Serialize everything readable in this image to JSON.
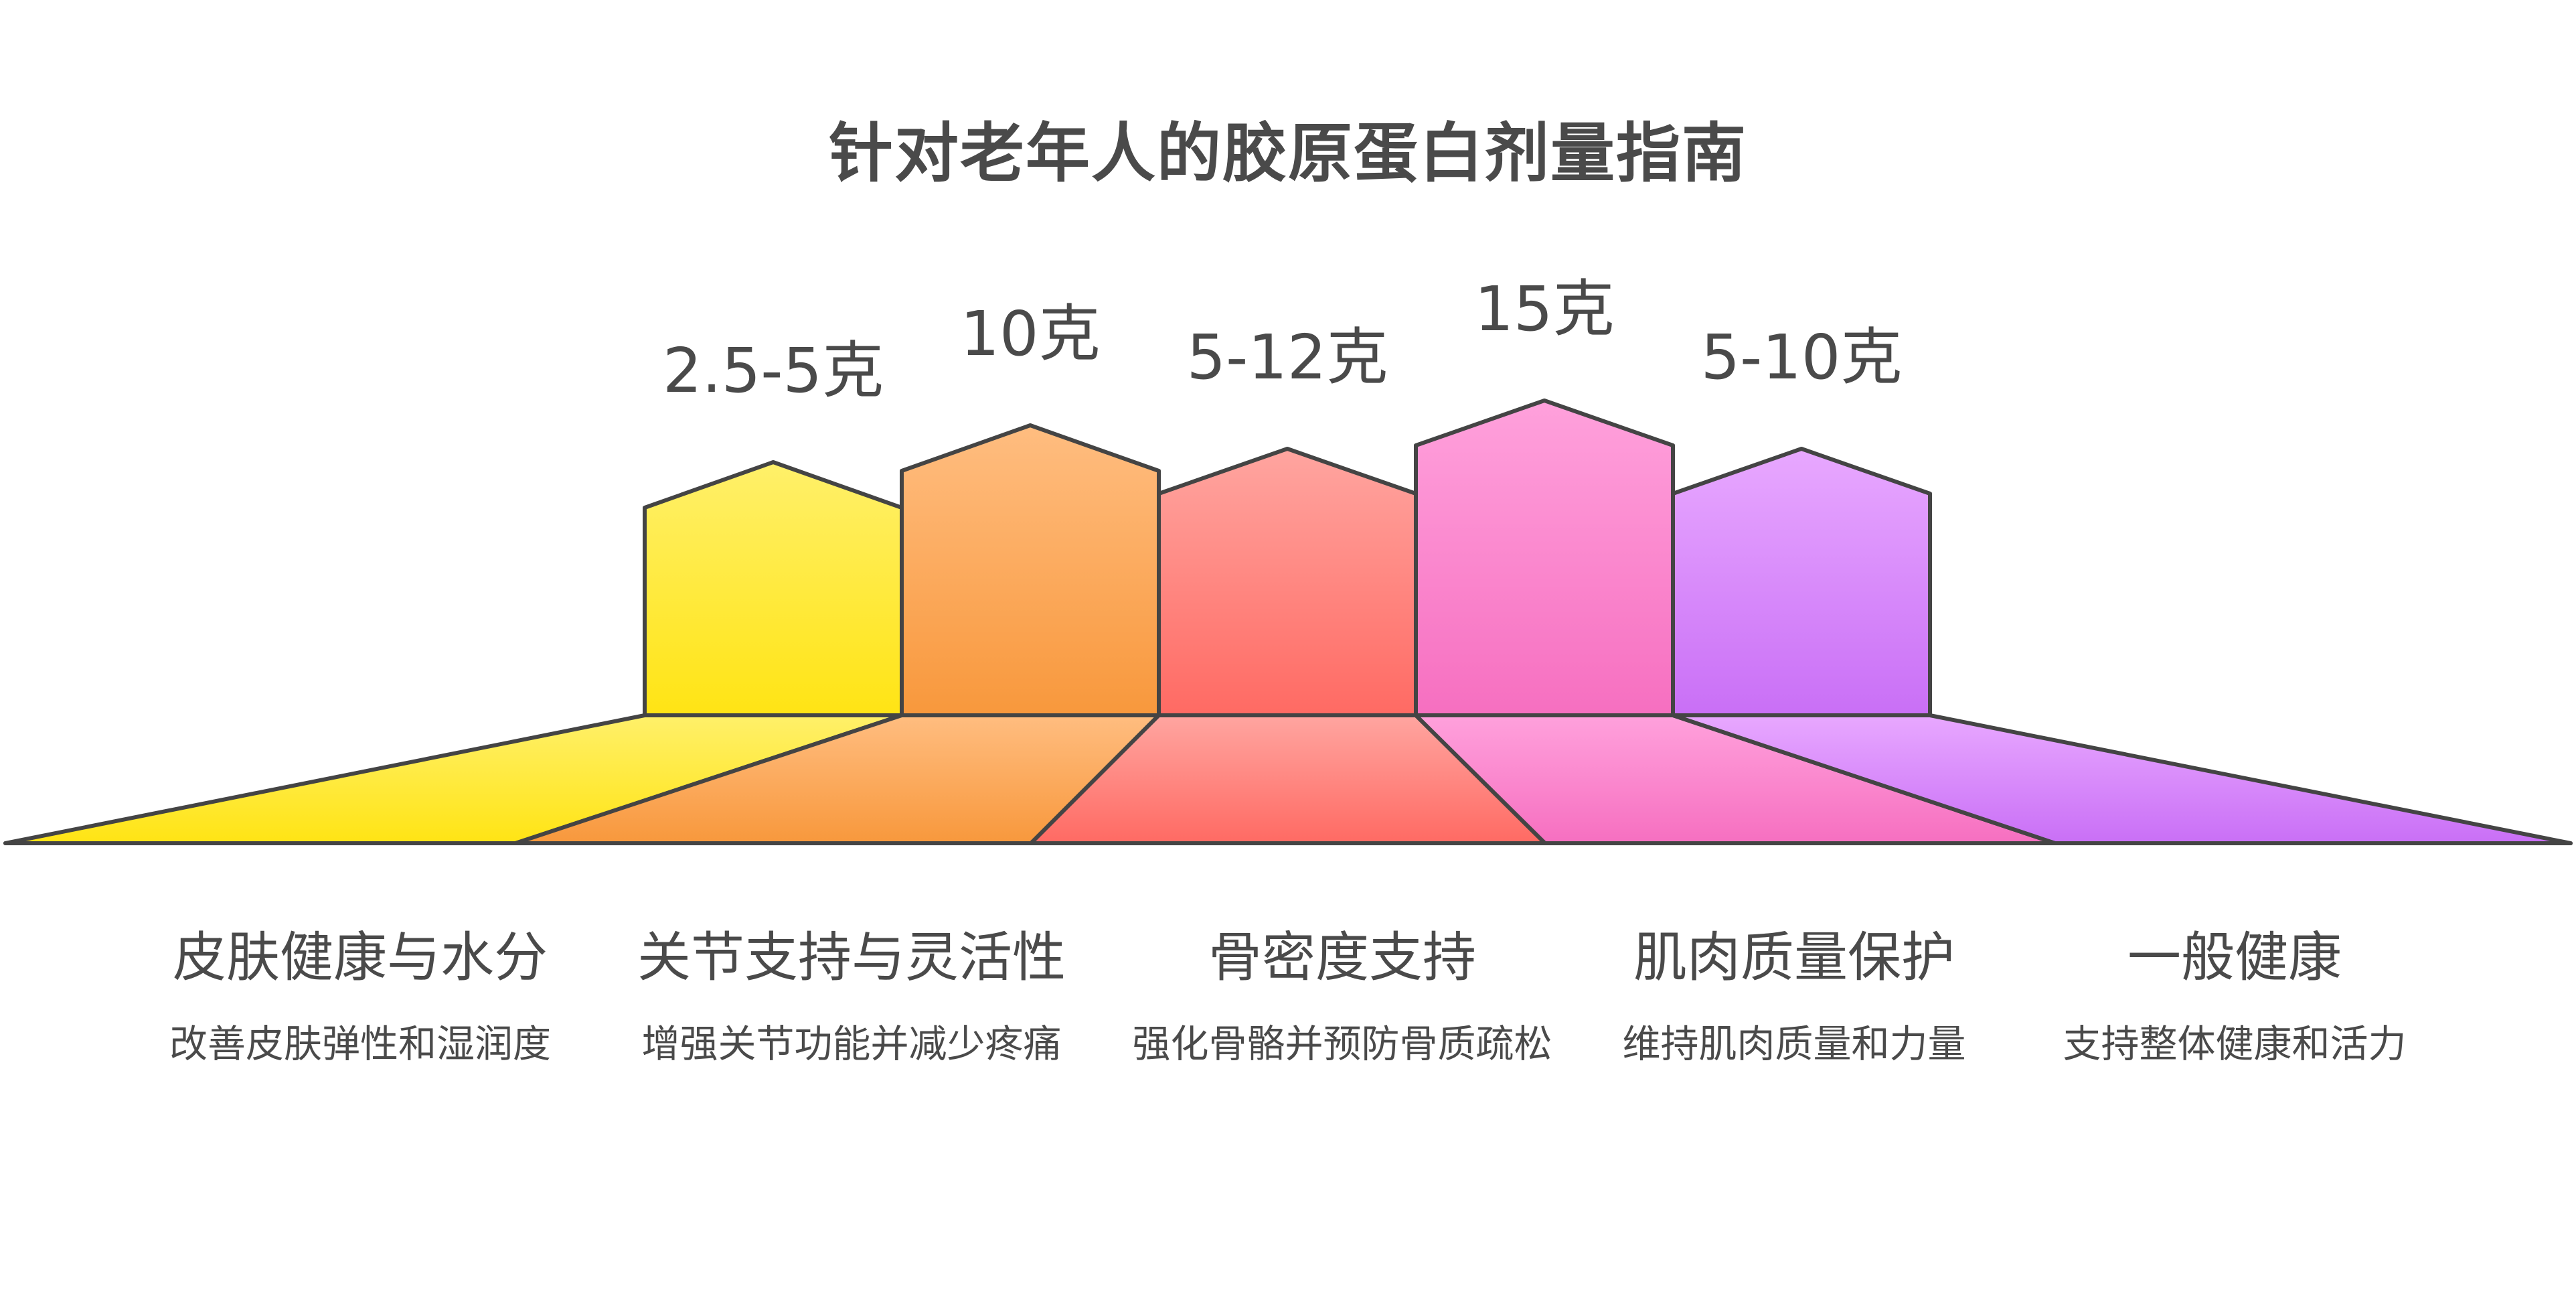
{
  "title": "针对老年人的胶原蛋白剂量指南",
  "colors": {
    "outline": "#444444",
    "text": "#4a4a4a",
    "yellow_top": "#fff06a",
    "yellow_bottom": "#ffe414",
    "orange_top": "#ffbd80",
    "orange_bottom": "#f8983c",
    "red_top": "#ffa5a0",
    "red_bottom": "#ff6a63",
    "pink_top": "#ffa1dc",
    "pink_bottom": "#f66fc0",
    "purple_top": "#e8a8ff",
    "purple_bottom": "#c96ff6"
  },
  "items": [
    {
      "dose": "2.5-5克",
      "title": "皮肤健康与水分",
      "desc": "改善皮肤弹性和湿润度",
      "color_key": "yellow"
    },
    {
      "dose": "10克",
      "title": "关节支持与灵活性",
      "desc": "增强关节功能并减少疼痛",
      "color_key": "orange"
    },
    {
      "dose": "5-12克",
      "title": "骨密度支持",
      "desc": "强化骨骼并预防骨质疏松",
      "color_key": "red"
    },
    {
      "dose": "15克",
      "title": "肌肉质量保护",
      "desc": "维持肌肉质量和力量",
      "color_key": "pink"
    },
    {
      "dose": "5-10克",
      "title": "一般健康",
      "desc": "支持整体健康和活力",
      "color_key": "purple"
    }
  ]
}
